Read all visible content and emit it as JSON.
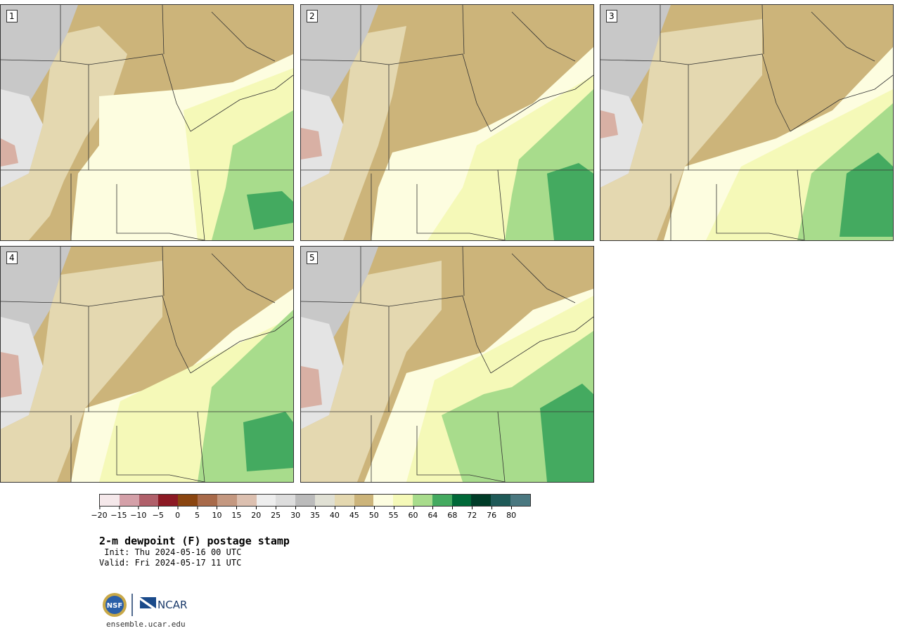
{
  "panels": [
    {
      "label": "1"
    },
    {
      "label": "2"
    },
    {
      "label": "3"
    },
    {
      "label": "4"
    },
    {
      "label": "5"
    }
  ],
  "colorbar": {
    "colors": [
      "#f5e8ea",
      "#d4a0a8",
      "#b0606a",
      "#8c1a24",
      "#8a4510",
      "#a86a4a",
      "#c49880",
      "#dcc0b0",
      "#eeeeee",
      "#dddddd",
      "#bbbbbb",
      "#e0e0d4",
      "#e4d8b0",
      "#ccb47a",
      "#fdfde0",
      "#f5f9b8",
      "#a8dc8c",
      "#44aa60",
      "#006838",
      "#003c28",
      "#1f5a58",
      "#4a7880"
    ],
    "tick_labels": [
      "−20",
      "−15",
      "−10",
      "−5",
      "0",
      "5",
      "10",
      "15",
      "20",
      "25",
      "30",
      "35",
      "40",
      "45",
      "50",
      "55",
      "60",
      "64",
      "68",
      "72",
      "76",
      "80"
    ]
  },
  "title": "2-m dewpoint (F) postage stamp",
  "init": " Init: Thu 2024-05-16 00 UTC",
  "valid": "Valid: Fri 2024-05-17 11 UTC",
  "logos": {
    "nsf_text": "NSF",
    "ncar_text": "NCAR"
  },
  "site": "ensemble.ucar.edu"
}
